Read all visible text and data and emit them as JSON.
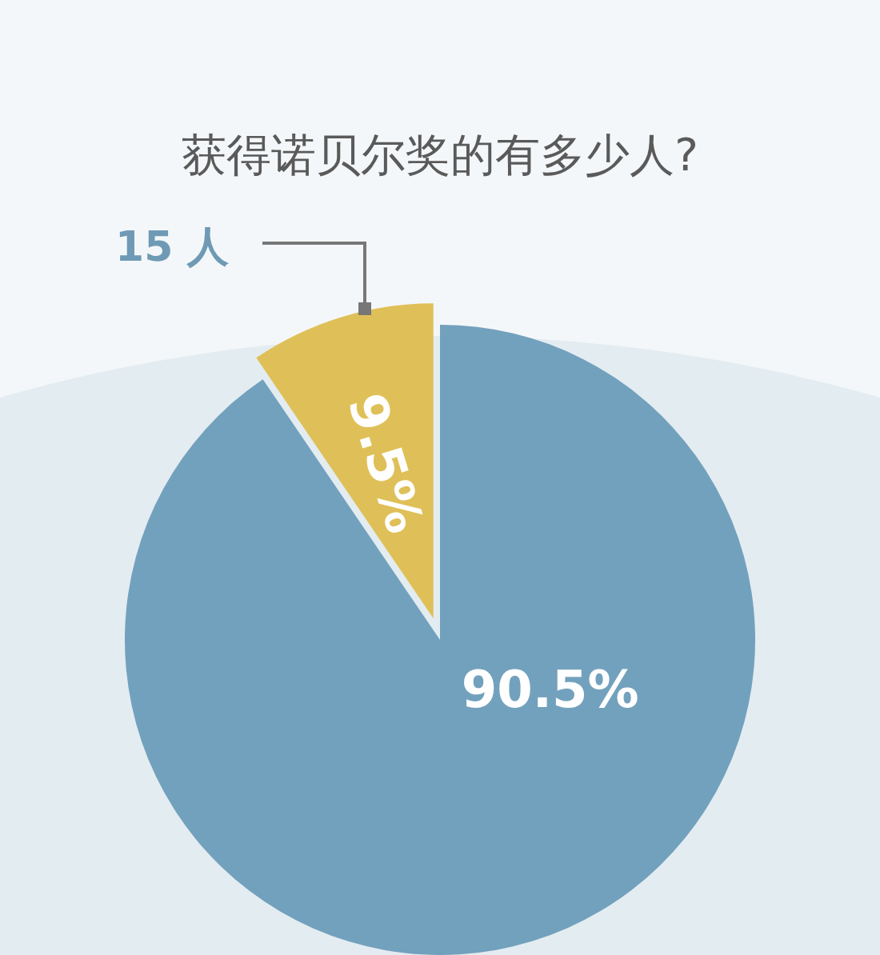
{
  "chart_data": {
    "type": "pie",
    "title": "获得诺贝尔奖的有多少人?",
    "categories": [
      null,
      null
    ],
    "values": [
      90.5,
      9.5
    ],
    "colors": [
      "#72a1bd",
      "#dfc058"
    ],
    "value_labels": [
      "90.5%",
      "9.5%"
    ],
    "annotations": [
      "15 人"
    ]
  }
}
